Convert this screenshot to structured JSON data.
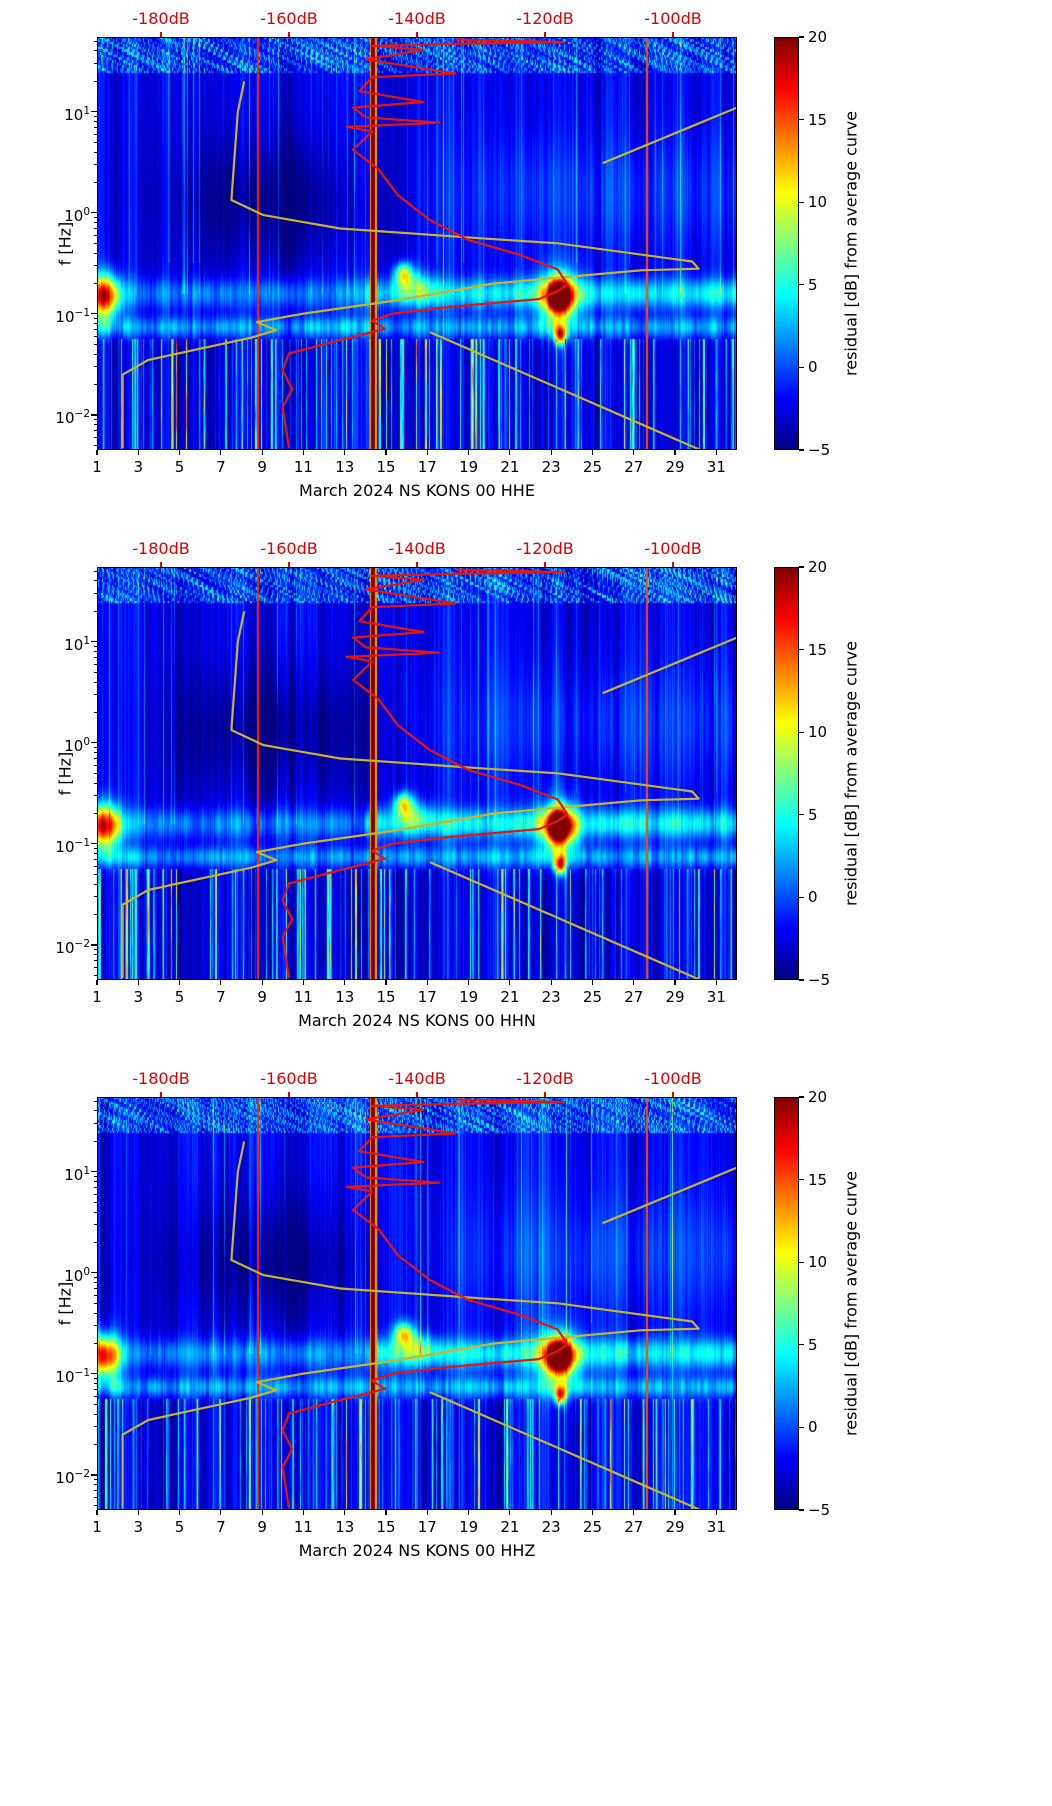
{
  "page": {
    "background": "#ffffff"
  },
  "chart_data": {
    "type": "heatmap",
    "description": "Three daily PSD residual spectrograms (log-frequency vs day of month, jet colormap) with a red station PSD curve and olive noise-model curves overlaid against a secondary dB axis on top",
    "panels": [
      {
        "title": "March 2024 NS KONS 00 HHE",
        "seed": 101
      },
      {
        "title": "March 2024 NS KONS 00 HHN",
        "seed": 202
      },
      {
        "title": "March 2024 NS KONS 00 HHZ",
        "seed": 303
      }
    ],
    "x_axis": {
      "range": [
        1,
        32
      ],
      "ticks": [
        1,
        3,
        5,
        7,
        9,
        11,
        13,
        15,
        17,
        19,
        21,
        23,
        25,
        27,
        29,
        31
      ]
    },
    "y_axis": {
      "label": "f [Hz]",
      "scale": "log",
      "range": [
        0.0045,
        55
      ],
      "ticks": [
        0.01,
        0.1,
        1,
        10
      ]
    },
    "top_axis": {
      "range": [
        -190,
        -90
      ],
      "ticks": [
        -180,
        -160,
        -140,
        -120,
        -100
      ],
      "tick_labels": [
        "-180dB",
        "-160dB",
        "-140dB",
        "-120dB",
        "-100dB"
      ],
      "color": "#dd0000"
    },
    "colorbar": {
      "label": "residual [dB] from average curve",
      "range": [
        -5,
        20
      ],
      "ticks": [
        20,
        15,
        10,
        5,
        0,
        -5
      ],
      "colormap": "jet"
    },
    "series": [
      {
        "name": "psd-curve",
        "color": "#e8150f",
        "width": 2.2,
        "points": [
          [
            -134,
            52
          ],
          [
            -117,
            49
          ],
          [
            -135,
            47
          ],
          [
            -147,
            45
          ],
          [
            -139,
            41
          ],
          [
            -148,
            33
          ],
          [
            -134,
            24
          ],
          [
            -147,
            22
          ],
          [
            -149,
            16
          ],
          [
            -139,
            12.5
          ],
          [
            -150,
            11
          ],
          [
            -148,
            8.8
          ],
          [
            -136.5,
            7.8
          ],
          [
            -151,
            7.1
          ],
          [
            -147,
            6.4
          ],
          [
            -150,
            4.2
          ],
          [
            -146,
            2.7
          ],
          [
            -143,
            1.5
          ],
          [
            -138,
            0.85
          ],
          [
            -132,
            0.54
          ],
          [
            -124,
            0.385
          ],
          [
            -118,
            0.275
          ],
          [
            -116.5,
            0.197
          ],
          [
            -118,
            0.168
          ],
          [
            -121,
            0.14
          ],
          [
            -135,
            0.117
          ],
          [
            -144,
            0.1
          ],
          [
            -147,
            0.0855
          ],
          [
            -145,
            0.0713
          ],
          [
            -152,
            0.055
          ],
          [
            -160,
            0.0406
          ],
          [
            -161,
            0.0276
          ],
          [
            -159.5,
            0.018
          ],
          [
            -161,
            0.012
          ],
          [
            -160,
            0.0047
          ]
        ]
      },
      {
        "name": "noise-model-curves",
        "color": "#c9b42c",
        "width": 2.2,
        "segments": [
          [
            [
              -167,
              20
            ],
            [
              -168,
              10
            ],
            [
              -169,
              1.34
            ],
            [
              -164,
              0.95
            ],
            [
              -152,
              0.7
            ],
            [
              -130,
              0.56
            ],
            [
              -118,
              0.5
            ],
            [
              -97,
              0.33
            ],
            [
              -96,
              0.28
            ],
            [
              -105,
              0.27
            ],
            [
              -128,
              0.2
            ],
            [
              -143,
              0.137
            ],
            [
              -158,
              0.1
            ],
            [
              -165,
              0.083
            ],
            [
              -162,
              0.069
            ],
            [
              -166,
              0.058
            ],
            [
              -182,
              0.035
            ],
            [
              -186,
              0.025
            ],
            [
              -186,
              0.0047
            ]
          ],
          [
            [
              -90,
              11
            ],
            [
              -111,
              3.1
            ]
          ],
          [
            [
              -138,
              0.066
            ],
            [
              -95,
              0.0043
            ]
          ]
        ]
      }
    ],
    "features": {
      "base": -2.3,
      "hotspots": [
        {
          "d": 23.4,
          "lf": -0.83,
          "sd": 0.6,
          "slf": 0.17,
          "amp": 24
        },
        {
          "d": 23.4,
          "lf": -0.85,
          "sd": 1.2,
          "slf": 0.33,
          "amp": 7
        },
        {
          "d": 23.45,
          "lf": -1.21,
          "sd": 0.28,
          "slf": 0.09,
          "amp": 16
        },
        {
          "d": 1.35,
          "lf": -0.83,
          "sd": 0.75,
          "slf": 0.22,
          "amp": 17
        },
        {
          "d": 15.85,
          "lf": -0.6,
          "sd": 0.45,
          "slf": 0.11,
          "amp": 11
        },
        {
          "d": 16.4,
          "lf": -0.72,
          "sd": 0.9,
          "slf": 0.16,
          "amp": 5
        }
      ],
      "red_lines": [
        {
          "d": 14.38,
          "w": 0.1,
          "v": 20
        },
        {
          "d": 14.38,
          "w": 0.17,
          "v": 13
        },
        {
          "d": 8.82,
          "w": 0.05,
          "v": 16
        },
        {
          "d": 27.62,
          "w": 0.05,
          "v": 15
        }
      ]
    }
  }
}
